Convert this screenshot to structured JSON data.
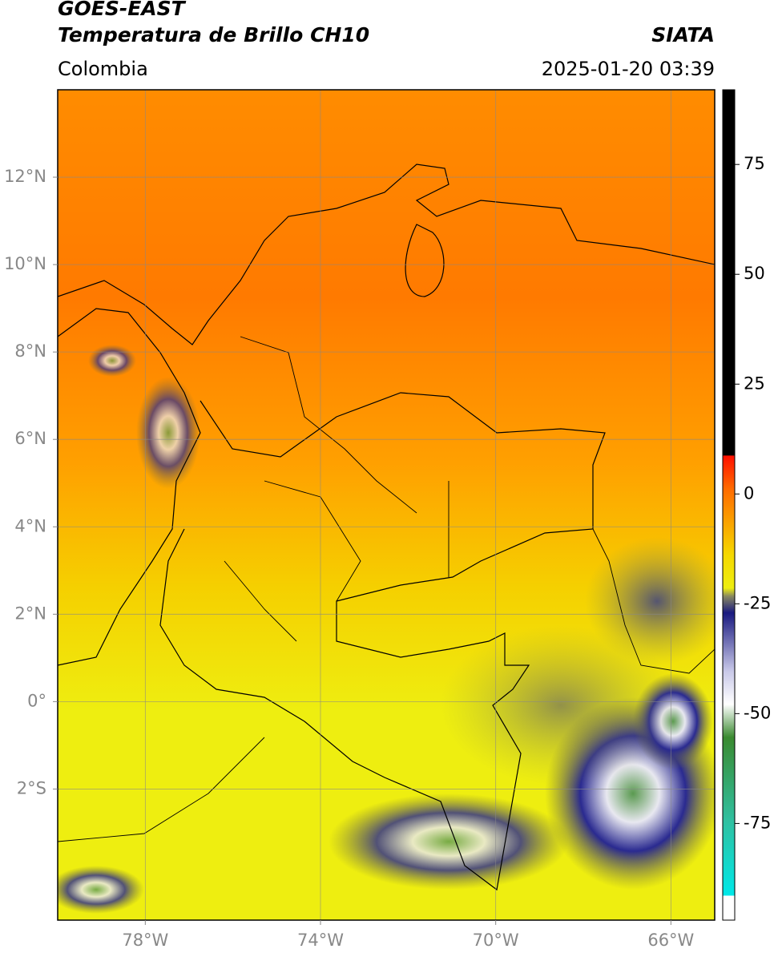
{
  "header": {
    "title": "GOES-EAST",
    "subtitle": "Temperatura de Brillo CH10",
    "source": "SIATA",
    "region": "Colombia",
    "timestamp": "2025-01-20 03:39"
  },
  "map": {
    "xlim": [
      -80,
      -65
    ],
    "ylim": [
      -5,
      14
    ],
    "xticks": [
      {
        "value": -78,
        "label": "78°W"
      },
      {
        "value": -74,
        "label": "74°W"
      },
      {
        "value": -70,
        "label": "70°W"
      },
      {
        "value": -66,
        "label": "66°W"
      }
    ],
    "yticks": [
      {
        "value": 12,
        "label": "12°N"
      },
      {
        "value": 10,
        "label": "10°N"
      },
      {
        "value": 8,
        "label": "8°N"
      },
      {
        "value": 6,
        "label": "6°N"
      },
      {
        "value": 4,
        "label": "4°N"
      },
      {
        "value": 2,
        "label": "2°N"
      },
      {
        "value": 0,
        "label": "0°"
      },
      {
        "value": -2,
        "label": "2°S"
      }
    ],
    "grid": true
  },
  "colorbar": {
    "lim": [
      -97,
      92
    ],
    "ticks": [
      75,
      50,
      25,
      0,
      -25,
      -50,
      -75
    ]
  }
}
